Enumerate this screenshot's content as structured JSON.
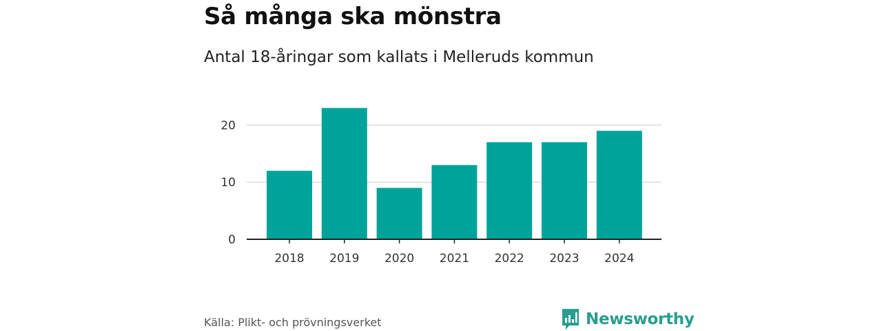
{
  "header": {
    "title": "Så många ska mönstra",
    "subtitle": "Antal 18-åringar som kallats i Melleruds kommun"
  },
  "footer": {
    "source": "Källa: Plikt- och prövningsverket",
    "brand": "Newsworthy",
    "brand_icon": "bar-chart-bubble-icon"
  },
  "colors": {
    "bar": "#00a39a",
    "brand": "#2a9d8f",
    "grid": "#dddddd",
    "axis": "#222222"
  },
  "chart_data": {
    "type": "bar",
    "categories": [
      "2018",
      "2019",
      "2020",
      "2021",
      "2022",
      "2023",
      "2024"
    ],
    "values": [
      12,
      23,
      9,
      13,
      17,
      17,
      19
    ],
    "title": "",
    "xlabel": "",
    "ylabel": "",
    "ylim": [
      0,
      25
    ],
    "yticks": [
      0,
      10,
      20
    ],
    "grid": true,
    "legend": "none"
  }
}
